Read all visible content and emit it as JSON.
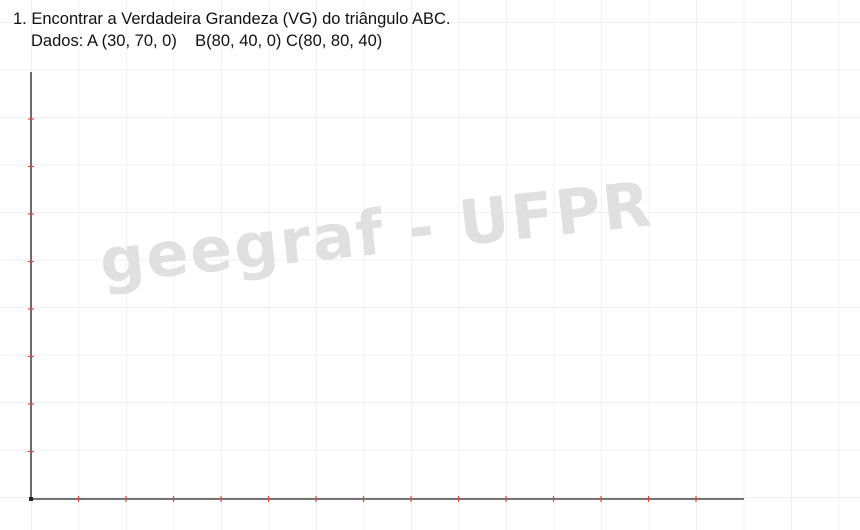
{
  "problem": {
    "statement": "1. Encontrar a Verdadeira Grandeza (VG) do triângulo ABC.",
    "data_line": "Dados: A (30, 70, 0)    B(80, 40, 0) C(80, 80, 40)"
  },
  "watermark": "geegraf - UFPR",
  "colors": {
    "axis": "#222222",
    "tick": "#e8453c",
    "grid": "#f1f1f1"
  },
  "graph": {
    "x_tick_count": 15,
    "y_tick_count": 8
  }
}
